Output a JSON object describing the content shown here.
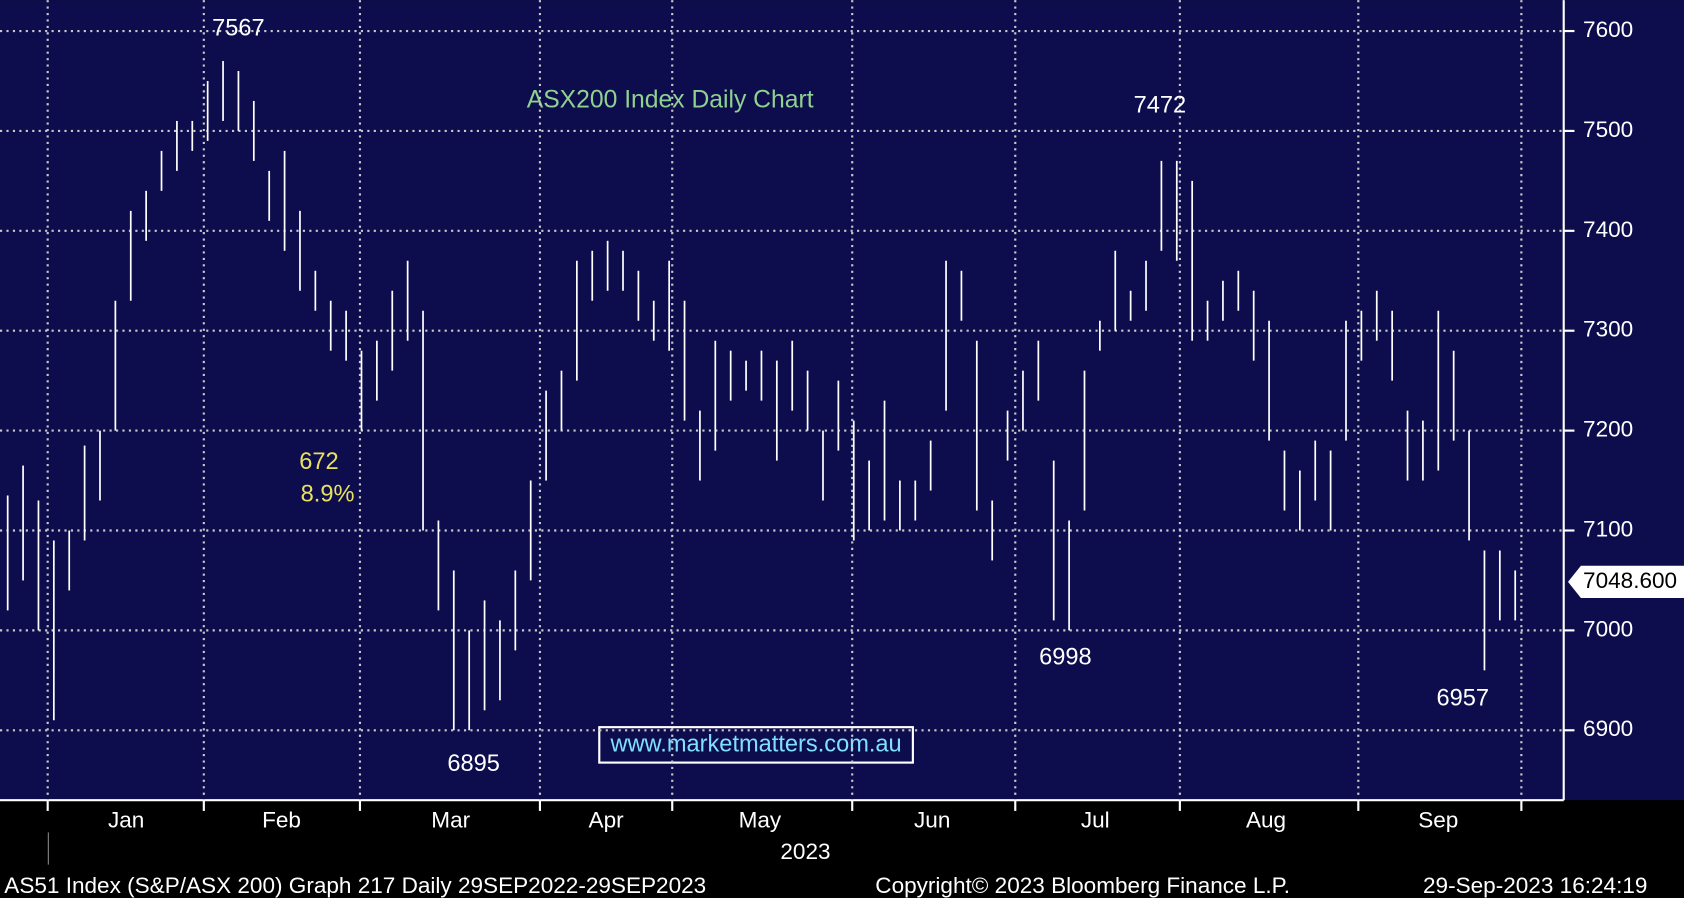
{
  "chart_data": {
    "type": "range-bar",
    "title": "ASX200 Index Daily Chart",
    "website": "www.marketmatters.com.au",
    "color": "#ffffff",
    "high": [
      7135,
      7165,
      7130,
      7090,
      7100,
      7185,
      7200,
      7330,
      7420,
      7440,
      7480,
      7510,
      7510,
      7550,
      7570,
      7560,
      7530,
      7460,
      7480,
      7420,
      7360,
      7330,
      7320,
      7280,
      7290,
      7340,
      7370,
      7320,
      7110,
      7060,
      7000,
      7030,
      7010,
      7060,
      7150,
      7240,
      7260,
      7370,
      7380,
      7390,
      7380,
      7360,
      7330,
      7370,
      7330,
      7220,
      7290,
      7280,
      7270,
      7280,
      7270,
      7290,
      7260,
      7200,
      7250,
      7210,
      7170,
      7230,
      7150,
      7150,
      7190,
      7370,
      7360,
      7290,
      7130,
      7220,
      7260,
      7290,
      7170,
      7110,
      7260,
      7310,
      7380,
      7340,
      7370,
      7470,
      7470,
      7450,
      7330,
      7350,
      7360,
      7340,
      7310,
      7180,
      7160,
      7190,
      7180,
      7310,
      7320,
      7340,
      7320,
      7220,
      7210,
      7320,
      7280,
      7200,
      7080,
      7080,
      7060
    ],
    "low": [
      7020,
      7050,
      7000,
      6910,
      7040,
      7090,
      7130,
      7200,
      7330,
      7390,
      7440,
      7460,
      7480,
      7490,
      7510,
      7500,
      7470,
      7410,
      7380,
      7340,
      7320,
      7280,
      7270,
      7200,
      7230,
      7260,
      7290,
      7100,
      7020,
      6900,
      6900,
      6920,
      6930,
      6980,
      7050,
      7150,
      7200,
      7250,
      7330,
      7340,
      7340,
      7310,
      7290,
      7280,
      7210,
      7150,
      7180,
      7230,
      7240,
      7230,
      7170,
      7220,
      7200,
      7130,
      7180,
      7090,
      7100,
      7110,
      7100,
      7110,
      7140,
      7220,
      7310,
      7120,
      7070,
      7170,
      7200,
      7230,
      7010,
      7000,
      7120,
      7280,
      7300,
      7310,
      7320,
      7380,
      7370,
      7290,
      7290,
      7310,
      7320,
      7270,
      7190,
      7120,
      7100,
      7130,
      7100,
      7190,
      7270,
      7290,
      7250,
      7150,
      7150,
      7160,
      7190,
      7090,
      6960,
      7010,
      7010
    ],
    "xlim": [
      0,
      99
    ],
    "xticks": [
      {
        "value": 8.2,
        "label": "Jan"
      },
      {
        "value": 18.3,
        "label": "Feb"
      },
      {
        "value": 29.3,
        "label": "Mar"
      },
      {
        "value": 39.4,
        "label": "Apr"
      },
      {
        "value": 49.4,
        "label": "May"
      },
      {
        "value": 60.6,
        "label": "Jun"
      },
      {
        "value": 71.2,
        "label": "Jul"
      },
      {
        "value": 82.3,
        "label": "Aug"
      },
      {
        "value": 93.5,
        "label": "Sep"
      }
    ],
    "xminor": [
      3.1,
      13.25,
      23.4,
      35.1,
      43.7,
      55.4,
      66,
      76.7,
      88.3,
      98.9
    ],
    "xlabel": "2023",
    "ylim": [
      6830,
      7631
    ],
    "yticks": [
      6900,
      7000,
      7100,
      7200,
      7300,
      7400,
      7500,
      7600
    ],
    "grid": true,
    "last_price": {
      "value": 7048.6,
      "label": "7048.600"
    },
    "annotations": [
      {
        "label": "7567"
      },
      {
        "label": "7472"
      },
      {
        "label": "6998"
      },
      {
        "label": "6895"
      },
      {
        "label": "6957"
      },
      {
        "label": "672"
      },
      {
        "label": "8.9%"
      }
    ],
    "footer": [
      "AS51 Index (S&P/ASX 200) Graph 217  Daily 29SEP2022-29SEP2023",
      "Copyright© 2023 Bloomberg Finance L.P.",
      "29-Sep-2023 16:24:19"
    ]
  }
}
